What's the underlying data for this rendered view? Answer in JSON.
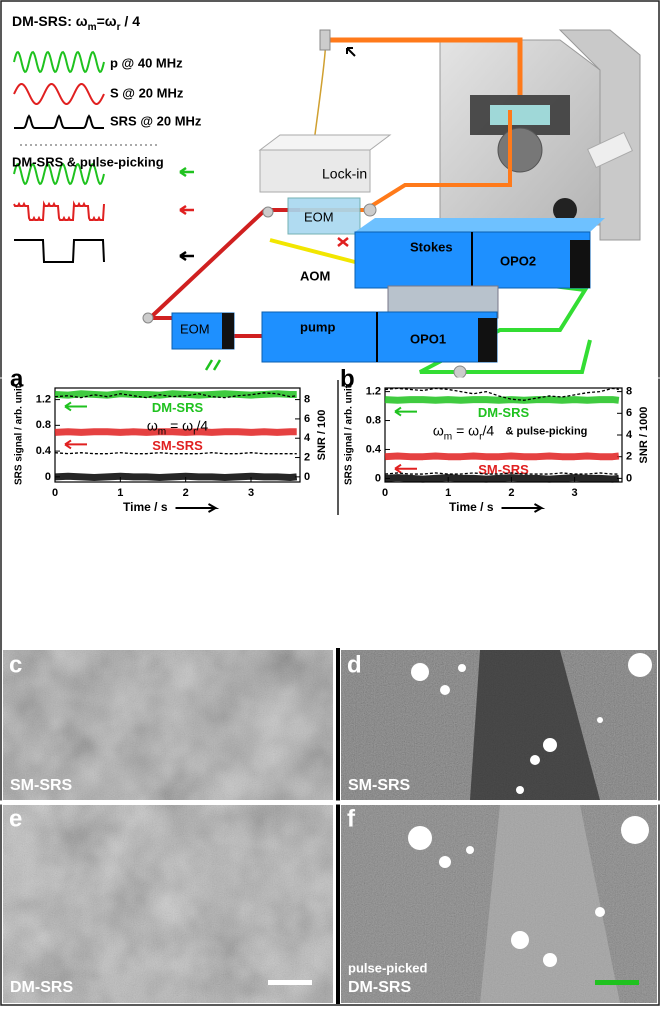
{
  "schematic": {
    "header": [
      "DM-SRS: ω",
      "m",
      "=ω",
      "r",
      " / 4"
    ],
    "waves": [
      "p @ 40 MHz",
      "S @ 20 MHz",
      "SRS @ 20 MHz"
    ],
    "subtitle": "DM-SRS & pulse-picking",
    "components": [
      "Lock-in",
      "EOM",
      "AOM",
      "Stokes",
      "OPO2",
      "EOM",
      "pump",
      "OPO1"
    ]
  },
  "chart_data": [
    {
      "type": "line",
      "panel": "a",
      "xlabel": "Time / s",
      "ylabel": "SRS signal / arb. unit",
      "y2label": "SNR / 100",
      "annotation": [
        "ω",
        "m",
        " = ω",
        "r",
        "/4"
      ],
      "x": [
        0,
        0.2,
        0.4,
        0.6,
        0.8,
        1.0,
        1.2,
        1.4,
        1.6,
        1.8,
        2.0,
        2.2,
        2.4,
        2.6,
        2.8,
        3.0,
        3.2,
        3.4,
        3.6,
        3.7
      ],
      "xlim": [
        0,
        3.75
      ],
      "xticks": [
        0,
        1,
        2,
        3
      ],
      "ylim": [
        -0.08,
        1.38
      ],
      "yticks": [
        0,
        0.4,
        0.8,
        1.2
      ],
      "y2lim": [
        -0.533,
        9.2
      ],
      "y2ticks": [
        0,
        2,
        4,
        6,
        8
      ],
      "series": [
        {
          "name": "DM-SRS",
          "color": "#1fc21f",
          "values": [
            1.28,
            1.27,
            1.29,
            1.28,
            1.27,
            1.29,
            1.28,
            1.28,
            1.27,
            1.29,
            1.28,
            1.27,
            1.28,
            1.29,
            1.28,
            1.27,
            1.28,
            1.29,
            1.28,
            1.28
          ]
        },
        {
          "name": "SM-SRS",
          "color": "#e02020",
          "values": [
            0.69,
            0.7,
            0.69,
            0.7,
            0.7,
            0.69,
            0.7,
            0.69,
            0.7,
            0.7,
            0.69,
            0.7,
            0.69,
            0.7,
            0.7,
            0.69,
            0.7,
            0.69,
            0.7,
            0.7
          ]
        },
        {
          "color": "#000000",
          "values": [
            0,
            0.01,
            0,
            -0.01,
            0,
            0.01,
            0,
            0,
            -0.01,
            0,
            0.01,
            0,
            0,
            -0.01,
            0,
            0.01,
            0,
            0,
            -0.01,
            0
          ]
        },
        {
          "color": "#000000",
          "axis": "y2",
          "dashed": true,
          "values": [
            8.3,
            8.4,
            8.2,
            8.5,
            8.3,
            8.6,
            8.4,
            8.2,
            8.5,
            8.3,
            8.4,
            8.6,
            8.3,
            8.2,
            8.4,
            8.5,
            8.7,
            8.6,
            8.3,
            8.4
          ]
        },
        {
          "color": "#000000",
          "axis": "y2",
          "dashed": true,
          "values": [
            2.5,
            2.4,
            2.5,
            2.4,
            2.4,
            2.5,
            2.4,
            2.4,
            2.5,
            2.4,
            2.4,
            2.4,
            2.5,
            2.4,
            2.4,
            2.5,
            2.4,
            2.4,
            2.4,
            2.4
          ]
        }
      ]
    },
    {
      "type": "line",
      "panel": "b",
      "xlabel": "Time / s",
      "ylabel": "SRS signal / arb. unit",
      "y2label": "SNR / 1000",
      "annotation": [
        "ω",
        "m",
        " = ω",
        "r",
        "/4"
      ],
      "note": "& pulse-picking",
      "x": [
        0,
        0.2,
        0.4,
        0.6,
        0.8,
        1.0,
        1.2,
        1.4,
        1.6,
        1.8,
        2.0,
        2.2,
        2.4,
        2.6,
        2.8,
        3.0,
        3.2,
        3.4,
        3.6,
        3.7
      ],
      "xlim": [
        0,
        3.75
      ],
      "xticks": [
        0,
        1,
        2,
        3
      ],
      "ylim": [
        -0.05,
        1.25
      ],
      "yticks": [
        0,
        0.4,
        0.8,
        1.2
      ],
      "y2lim": [
        -0.333,
        8.333
      ],
      "y2ticks": [
        0,
        2,
        4,
        6,
        8
      ],
      "series": [
        {
          "name": "DM-SRS",
          "color": "#1fc21f",
          "values": [
            1.09,
            1.08,
            1.09,
            1.09,
            1.08,
            1.09,
            1.08,
            1.09,
            1.09,
            1.08,
            1.09,
            1.08,
            1.09,
            1.09,
            1.08,
            1.09,
            1.08,
            1.09,
            1.09,
            1.08
          ]
        },
        {
          "name": "SM-SRS",
          "color": "#e02020",
          "values": [
            0.3,
            0.31,
            0.3,
            0.3,
            0.31,
            0.3,
            0.3,
            0.31,
            0.3,
            0.3,
            0.31,
            0.3,
            0.3,
            0.31,
            0.3,
            0.3,
            0.31,
            0.3,
            0.3,
            0.31
          ]
        },
        {
          "color": "#000000",
          "values": [
            0,
            0.01,
            0,
            -0.01,
            0,
            0.01,
            0,
            0,
            -0.01,
            0,
            0.01,
            0,
            0,
            -0.01,
            0,
            0.01,
            0,
            0,
            -0.01,
            0
          ]
        },
        {
          "color": "#000000",
          "axis": "y2",
          "dashed": true,
          "values": [
            8.2,
            8.3,
            8.2,
            8.1,
            8.3,
            8.2,
            8.0,
            7.8,
            8.0,
            7.6,
            7.3,
            7.2,
            7.4,
            7.6,
            7.5,
            7.7,
            7.9,
            8.0,
            8.3,
            8.2
          ]
        },
        {
          "color": "#000000",
          "axis": "y2",
          "dashed": true,
          "values": [
            0.4,
            0.5,
            0.4,
            0.4,
            0.5,
            0.4,
            0.4,
            0.5,
            0.4,
            0.4,
            0.5,
            0.4,
            0.4,
            0.4,
            0.5,
            0.4,
            0.4,
            0.5,
            0.4,
            0.4
          ]
        }
      ]
    }
  ],
  "images": [
    {
      "panel": "c",
      "label": "SM-SRS"
    },
    {
      "panel": "d",
      "label": "SM-SRS"
    },
    {
      "panel": "e",
      "label": "DM-SRS"
    },
    {
      "panel": "f",
      "label": "DM-SRS",
      "note": "pulse-picked"
    }
  ]
}
